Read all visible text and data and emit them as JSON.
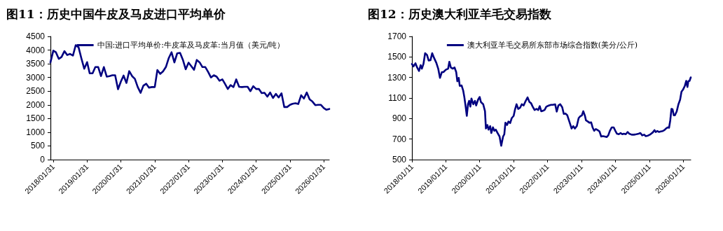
{
  "chart_data": [
    {
      "type": "line",
      "title": "图11：历史中国牛皮及马皮进口平均单价",
      "legend": "top",
      "marker": "none",
      "line_style": "solid",
      "grid": false,
      "xlim": [
        "2018-01",
        "2026-04"
      ],
      "xticks": [
        {
          "value": "2018-01-31",
          "label": "2018/01/31"
        },
        {
          "value": "2019-01-31",
          "label": "2019/01/31"
        },
        {
          "value": "2020-01-31",
          "label": "2020/01/31"
        },
        {
          "value": "2021-01-31",
          "label": "2021/01/31"
        },
        {
          "value": "2022-01-31",
          "label": "2022/01/31"
        },
        {
          "value": "2023-01-31",
          "label": "2023/01/31"
        },
        {
          "value": "2024-01-31",
          "label": "2024/01/31"
        },
        {
          "value": "2025-01-31",
          "label": "2025/01/31"
        },
        {
          "value": "2026-01-31",
          "label": "2026/01/31"
        }
      ],
      "ylim": [
        0,
        4500
      ],
      "yticks": [
        0,
        500,
        1000,
        1500,
        2000,
        2500,
        3000,
        3500,
        4000,
        4500
      ],
      "x": [
        "2018-01",
        "2018-02",
        "2018-03",
        "2018-04",
        "2018-05",
        "2018-06",
        "2018-07",
        "2018-08",
        "2018-09",
        "2018-10",
        "2018-11",
        "2018-12",
        "2019-01",
        "2019-02",
        "2019-03",
        "2019-04",
        "2019-05",
        "2019-06",
        "2019-07",
        "2019-08",
        "2019-09",
        "2019-10",
        "2019-11",
        "2019-12",
        "2020-01",
        "2020-02",
        "2020-03",
        "2020-04",
        "2020-05",
        "2020-06",
        "2020-07",
        "2020-08",
        "2020-09",
        "2020-10",
        "2020-11",
        "2020-12",
        "2021-01",
        "2021-02",
        "2021-03",
        "2021-04",
        "2021-05",
        "2021-06",
        "2021-07",
        "2021-08",
        "2021-09",
        "2021-10",
        "2021-11",
        "2021-12",
        "2022-01",
        "2022-02",
        "2022-03",
        "2022-04",
        "2022-05",
        "2022-06",
        "2022-07",
        "2022-08",
        "2022-09",
        "2022-10",
        "2022-11",
        "2022-12",
        "2023-01",
        "2023-02",
        "2023-03",
        "2023-04",
        "2023-05",
        "2023-06",
        "2023-07",
        "2023-08",
        "2023-09",
        "2023-10",
        "2023-11",
        "2023-12",
        "2024-01",
        "2024-02",
        "2024-03",
        "2024-04",
        "2024-05",
        "2024-06",
        "2024-07",
        "2024-08",
        "2024-09",
        "2024-10",
        "2024-11",
        "2024-12",
        "2025-01",
        "2025-02",
        "2025-03",
        "2025-04",
        "2025-05",
        "2025-06",
        "2025-07",
        "2025-08",
        "2025-09",
        "2025-10",
        "2025-11",
        "2025-12",
        "2026-01",
        "2026-02",
        "2026-03",
        "2026-04"
      ],
      "series": [
        {
          "name": "中国:进口平均单价:牛皮革及马皮革:当月值（美元/吨）",
          "color": "#000080",
          "values": [
            3550,
            3980,
            3920,
            3680,
            3750,
            3960,
            3820,
            3860,
            3800,
            4180,
            4100,
            3700,
            3320,
            3560,
            3150,
            3150,
            3380,
            3380,
            3050,
            3380,
            3030,
            3050,
            3080,
            3080,
            2570,
            2850,
            3070,
            2800,
            3230,
            3050,
            2950,
            2650,
            2440,
            2700,
            2770,
            2630,
            2650,
            2650,
            3270,
            3130,
            3220,
            3380,
            3700,
            3920,
            3550,
            3880,
            3900,
            3650,
            3300,
            3540,
            3420,
            3280,
            3640,
            3550,
            3380,
            3380,
            3200,
            3000,
            3080,
            3030,
            2880,
            2930,
            2770,
            2580,
            2720,
            2650,
            2930,
            2660,
            2650,
            2660,
            2660,
            2500,
            2680,
            2580,
            2580,
            2430,
            2440,
            2300,
            2450,
            2250,
            2400,
            2270,
            2420,
            1920,
            1920,
            2000,
            2040,
            2060,
            2030,
            2350,
            2230,
            2450,
            2200,
            2120,
            1990,
            2000,
            2000,
            1880,
            1820,
            1850
          ]
        }
      ]
    },
    {
      "type": "line",
      "title": "图12：历史澳大利亚羊毛交易指数",
      "legend": "top",
      "marker": "none",
      "line_style": "solid",
      "grid": false,
      "xlim": [
        "2018-01-11",
        "2026-04-03"
      ],
      "xticks": [
        {
          "value": "2018-01-11",
          "label": "2018/01/11"
        },
        {
          "value": "2019-01-11",
          "label": "2019/01/11"
        },
        {
          "value": "2020-01-11",
          "label": "2020/01/11"
        },
        {
          "value": "2021-01-11",
          "label": "2021/01/11"
        },
        {
          "value": "2022-01-11",
          "label": "2022/01/11"
        },
        {
          "value": "2023-01-11",
          "label": "2023/01/11"
        },
        {
          "value": "2024-01-11",
          "label": "2024/01/11"
        },
        {
          "value": "2025-01-11",
          "label": "2025/01/11"
        },
        {
          "value": "2026-01-11",
          "label": "2026/01/11"
        }
      ],
      "ylim": [
        500,
        1700
      ],
      "yticks": [
        500,
        700,
        900,
        1100,
        1300,
        1500,
        1700
      ],
      "x": [
        "2018-01-11",
        "2018-01-28",
        "2018-02-18",
        "2018-03-08",
        "2018-03-28",
        "2018-04-15",
        "2018-04-28",
        "2018-05-15",
        "2018-06-02",
        "2018-06-22",
        "2018-07-10",
        "2018-07-30",
        "2018-08-17",
        "2018-09-06",
        "2018-10-01",
        "2018-10-21",
        "2018-11-09",
        "2018-11-29",
        "2018-12-16",
        "2019-01-11",
        "2019-02-05",
        "2019-02-18",
        "2019-03-06",
        "2019-03-26",
        "2019-04-15",
        "2019-05-03",
        "2019-05-15",
        "2019-05-30",
        "2019-06-10",
        "2019-06-30",
        "2019-07-17",
        "2019-07-30",
        "2019-08-12",
        "2019-08-25",
        "2019-09-07",
        "2019-09-19",
        "2019-10-02",
        "2019-10-14",
        "2019-11-03",
        "2019-11-21",
        "2019-12-04",
        "2019-12-24",
        "2020-01-11",
        "2020-01-24",
        "2020-02-18",
        "2020-03-08",
        "2020-03-18",
        "2020-04-03",
        "2020-04-15",
        "2020-05-03",
        "2020-05-15",
        "2020-06-02",
        "2020-06-17",
        "2020-07-02",
        "2020-07-22",
        "2020-08-12",
        "2020-08-30",
        "2020-09-19",
        "2020-10-02",
        "2020-10-14",
        "2020-11-01",
        "2020-11-16",
        "2020-12-04",
        "2020-12-21",
        "2021-01-11",
        "2021-01-24",
        "2021-02-11",
        "2021-03-01",
        "2021-03-21",
        "2021-04-08",
        "2021-04-28",
        "2021-05-15",
        "2021-06-10",
        "2021-06-30",
        "2021-07-17",
        "2021-08-04",
        "2021-08-24",
        "2021-09-14",
        "2021-10-02",
        "2021-10-19",
        "2021-11-04",
        "2021-11-22",
        "2021-12-10",
        "2021-12-29",
        "2022-01-24",
        "2022-02-18",
        "2022-03-08",
        "2022-04-03",
        "2022-04-20",
        "2022-05-08",
        "2022-05-28",
        "2022-06-18",
        "2022-07-05",
        "2022-07-23",
        "2022-08-12",
        "2022-09-07",
        "2022-09-27",
        "2022-10-15",
        "2022-11-01",
        "2022-11-22",
        "2022-12-12",
        "2022-12-29",
        "2023-01-16",
        "2023-01-31",
        "2023-02-18",
        "2023-03-01",
        "2023-03-21",
        "2023-04-08",
        "2023-04-26",
        "2023-05-11",
        "2023-05-28",
        "2023-06-15",
        "2023-07-05",
        "2023-07-25",
        "2023-08-12",
        "2023-08-30",
        "2023-09-19",
        "2023-10-10",
        "2023-10-27",
        "2023-11-14",
        "2023-12-04",
        "2023-12-24",
        "2024-01-11",
        "2024-01-29",
        "2024-02-18",
        "2024-03-08",
        "2024-03-26",
        "2024-04-13",
        "2024-05-03",
        "2024-05-23",
        "2024-06-10",
        "2024-07-05",
        "2024-07-30",
        "2024-08-25",
        "2024-09-19",
        "2024-10-07",
        "2024-10-27",
        "2024-11-16",
        "2024-12-04",
        "2024-12-29",
        "2025-01-24",
        "2025-02-18",
        "2025-03-08",
        "2025-03-21",
        "2025-04-08",
        "2025-04-26",
        "2025-05-16",
        "2025-06-05",
        "2025-06-23",
        "2025-07-10",
        "2025-07-30",
        "2025-08-12",
        "2025-08-25",
        "2025-09-07",
        "2025-09-19",
        "2025-10-02",
        "2025-10-14",
        "2025-11-03",
        "2025-11-21",
        "2025-12-09",
        "2025-12-24",
        "2026-01-11",
        "2026-01-29",
        "2026-02-13",
        "2026-02-26",
        "2026-03-08",
        "2026-03-21",
        "2026-04-03"
      ],
      "series": [
        {
          "name": "澳大利亚羊毛交易所东部市场综合指数(美分/公斤)",
          "color": "#000080",
          "values": [
            1431,
            1408,
            1438,
            1397,
            1364,
            1420,
            1386,
            1431,
            1536,
            1520,
            1465,
            1469,
            1536,
            1491,
            1442,
            1386,
            1296,
            1352,
            1352,
            1375,
            1386,
            1453,
            1397,
            1386,
            1397,
            1352,
            1263,
            1296,
            1218,
            1222,
            1173,
            1106,
            1021,
            926,
            1039,
            1072,
            1016,
            1095,
            1039,
            1072,
            1027,
            1083,
            1110,
            1061,
            1039,
            971,
            803,
            837,
            792,
            826,
            759,
            814,
            781,
            792,
            759,
            725,
            635,
            725,
            747,
            859,
            837,
            871,
            855,
            904,
            926,
            983,
            1039,
            994,
            1005,
            1039,
            1027,
            1061,
            1106,
            1061,
            1050,
            1016,
            983,
            994,
            983,
            1021,
            971,
            976,
            983,
            1016,
            1027,
            1034,
            1034,
            1039,
            968,
            1027,
            1039,
            1010,
            945,
            949,
            931,
            859,
            803,
            826,
            803,
            826,
            904,
            922,
            931,
            971,
            926,
            882,
            871,
            859,
            863,
            814,
            781,
            797,
            787,
            774,
            725,
            729,
            725,
            720,
            736,
            781,
            814,
            814,
            781,
            752,
            747,
            759,
            747,
            752,
            747,
            769,
            752,
            743,
            743,
            747,
            752,
            759,
            736,
            743,
            729,
            734,
            747,
            765,
            787,
            769,
            778,
            769,
            774,
            778,
            787,
            803,
            814,
            810,
            882,
            994,
            989,
            931,
            931,
            971,
            1039,
            1083,
            1162,
            1184,
            1218,
            1267,
            1207,
            1263,
            1267,
            1301
          ]
        }
      ]
    }
  ]
}
